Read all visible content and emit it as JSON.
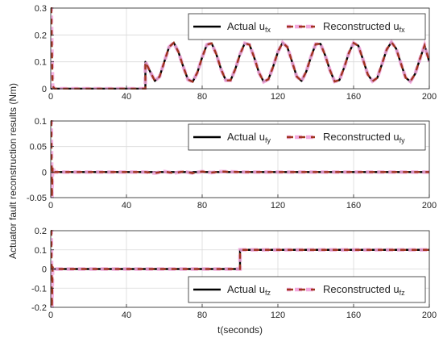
{
  "figure": {
    "ylabel": "Actuator fault reconstruction results (Nm)",
    "xlabel": "t(seconds)"
  },
  "colors": {
    "actual": "#000000",
    "reconstructed": "#a0341f",
    "reconstructed_band": "#f2a7dd",
    "grid": "#d9d9d9",
    "axes": "#262626"
  },
  "chart_data": [
    {
      "type": "line",
      "subplot": "u_fx",
      "xlim": [
        0,
        200
      ],
      "ylim": [
        0,
        0.3
      ],
      "xticks": [
        "0",
        "40",
        "80",
        "120",
        "160",
        "200"
      ],
      "yticks": [
        "0",
        "0.1",
        "0.2",
        "0.3"
      ],
      "xtick_values": [
        0,
        40,
        80,
        120,
        160,
        200
      ],
      "ytick_values": [
        0,
        0.1,
        0.2,
        0.3
      ],
      "grid": true,
      "legend_position": "top-right",
      "legend": [
        {
          "label": "Actual u",
          "sub": "fx"
        },
        {
          "label": "Reconstructed u",
          "sub": "fx"
        }
      ],
      "series": [
        {
          "name": "Actual u_fx",
          "x": [
            0,
            50,
            50,
            52.5,
            55,
            57.5,
            60,
            62.5,
            65,
            67.5,
            70,
            72.5,
            75,
            77.5,
            80,
            82.5,
            85,
            87.5,
            90,
            92.5,
            95,
            97.5,
            100,
            102.5,
            105,
            107.5,
            110,
            112.5,
            115,
            117.5,
            120,
            122.5,
            125,
            127.5,
            130,
            132.5,
            135,
            137.5,
            140,
            142.5,
            145,
            147.5,
            150,
            152.5,
            155,
            157.5,
            160,
            162.5,
            165,
            167.5,
            170,
            172.5,
            175,
            177.5,
            180,
            182.5,
            185,
            187.5,
            190,
            192.5,
            195,
            197.5,
            200
          ],
          "y": [
            0,
            0,
            0.1,
            0.064,
            0.029,
            0.045,
            0.1,
            0.155,
            0.171,
            0.136,
            0.082,
            0.034,
            0.026,
            0.061,
            0.117,
            0.164,
            0.169,
            0.128,
            0.072,
            0.031,
            0.031,
            0.073,
            0.128,
            0.169,
            0.164,
            0.116,
            0.06,
            0.026,
            0.035,
            0.082,
            0.137,
            0.171,
            0.155,
            0.1,
            0.045,
            0.029,
            0.064,
            0.119,
            0.166,
            0.167,
            0.124,
            0.069,
            0.027,
            0.032,
            0.078,
            0.133,
            0.17,
            0.16,
            0.108,
            0.053,
            0.028,
            0.04,
            0.092,
            0.146,
            0.173,
            0.149,
            0.094,
            0.041,
            0.027,
            0.055,
            0.11,
            0.161,
            0.1
          ]
        },
        {
          "name": "Reconstructed u_fx",
          "x": [
            0,
            0.3,
            0.6,
            1,
            2,
            50,
            50,
            52.5,
            55,
            57.5,
            60,
            62.5,
            65,
            67.5,
            70,
            72.5,
            75,
            77.5,
            80,
            82.5,
            85,
            87.5,
            90,
            92.5,
            95,
            97.5,
            100,
            102.5,
            105,
            107.5,
            110,
            112.5,
            115,
            117.5,
            120,
            122.5,
            125,
            127.5,
            130,
            132.5,
            135,
            137.5,
            140,
            142.5,
            145,
            147.5,
            150,
            152.5,
            155,
            157.5,
            160,
            162.5,
            165,
            167.5,
            170,
            172.5,
            175,
            177.5,
            180,
            182.5,
            185,
            187.5,
            190,
            192.5,
            195,
            197.5,
            200
          ],
          "y": [
            0.3,
            0.3,
            0.15,
            0.01,
            0,
            0,
            0.1,
            0.064,
            0.029,
            0.045,
            0.1,
            0.155,
            0.171,
            0.136,
            0.082,
            0.034,
            0.026,
            0.061,
            0.117,
            0.164,
            0.169,
            0.128,
            0.072,
            0.031,
            0.031,
            0.073,
            0.128,
            0.169,
            0.164,
            0.116,
            0.06,
            0.026,
            0.035,
            0.082,
            0.137,
            0.171,
            0.155,
            0.1,
            0.045,
            0.029,
            0.064,
            0.119,
            0.166,
            0.167,
            0.124,
            0.069,
            0.027,
            0.032,
            0.078,
            0.133,
            0.17,
            0.16,
            0.108,
            0.053,
            0.028,
            0.04,
            0.092,
            0.146,
            0.173,
            0.149,
            0.094,
            0.041,
            0.027,
            0.055,
            0.11,
            0.161,
            0.1
          ]
        }
      ]
    },
    {
      "type": "line",
      "subplot": "u_fy",
      "xlim": [
        0,
        200
      ],
      "ylim": [
        -0.05,
        0.1
      ],
      "xticks": [
        "0",
        "40",
        "80",
        "120",
        "160",
        "200"
      ],
      "yticks": [
        "-0.05",
        "0",
        "0.05",
        "0.1"
      ],
      "xtick_values": [
        0,
        40,
        80,
        120,
        160,
        200
      ],
      "ytick_values": [
        -0.05,
        0,
        0.05,
        0.1
      ],
      "grid": true,
      "legend_position": "top-right",
      "legend": [
        {
          "label": "Actual u",
          "sub": "fy"
        },
        {
          "label": "Reconstructed u",
          "sub": "fy"
        }
      ],
      "series": [
        {
          "name": "Actual u_fy",
          "x": [
            0,
            200
          ],
          "y": [
            0,
            0
          ]
        },
        {
          "name": "Reconstructed u_fy",
          "x": [
            0,
            0.3,
            0.6,
            1,
            2,
            50,
            55,
            60,
            65,
            70,
            75,
            80,
            85,
            90,
            100,
            120,
            200
          ],
          "y": [
            0.1,
            0.1,
            -0.05,
            0.01,
            0,
            0,
            -0.002,
            0.001,
            -0.002,
            0.001,
            -0.002,
            0.001,
            -0.001,
            0.001,
            0,
            0,
            0
          ]
        }
      ]
    },
    {
      "type": "line",
      "subplot": "u_fz",
      "xlim": [
        0,
        200
      ],
      "ylim": [
        -0.2,
        0.2
      ],
      "xticks": [
        "0",
        "40",
        "80",
        "120",
        "160",
        "200"
      ],
      "yticks": [
        "-0.2",
        "-0.1",
        "0",
        "0.1",
        "0.2"
      ],
      "xtick_values": [
        0,
        40,
        80,
        120,
        160,
        200
      ],
      "ytick_values": [
        -0.2,
        -0.1,
        0,
        0.1,
        0.2
      ],
      "grid": true,
      "legend_position": "bottom-right",
      "legend": [
        {
          "label": "Actual u",
          "sub": "fz"
        },
        {
          "label": "Reconstructed u",
          "sub": "fz"
        }
      ],
      "series": [
        {
          "name": "Actual u_fz",
          "x": [
            0,
            100,
            100,
            200
          ],
          "y": [
            0,
            0,
            0.1,
            0.1
          ]
        },
        {
          "name": "Reconstructed u_fz",
          "x": [
            0,
            0.3,
            0.6,
            1,
            2,
            100,
            100,
            200
          ],
          "y": [
            0.2,
            0.2,
            -0.2,
            0.01,
            0,
            0,
            0.1,
            0.1
          ]
        }
      ]
    }
  ]
}
